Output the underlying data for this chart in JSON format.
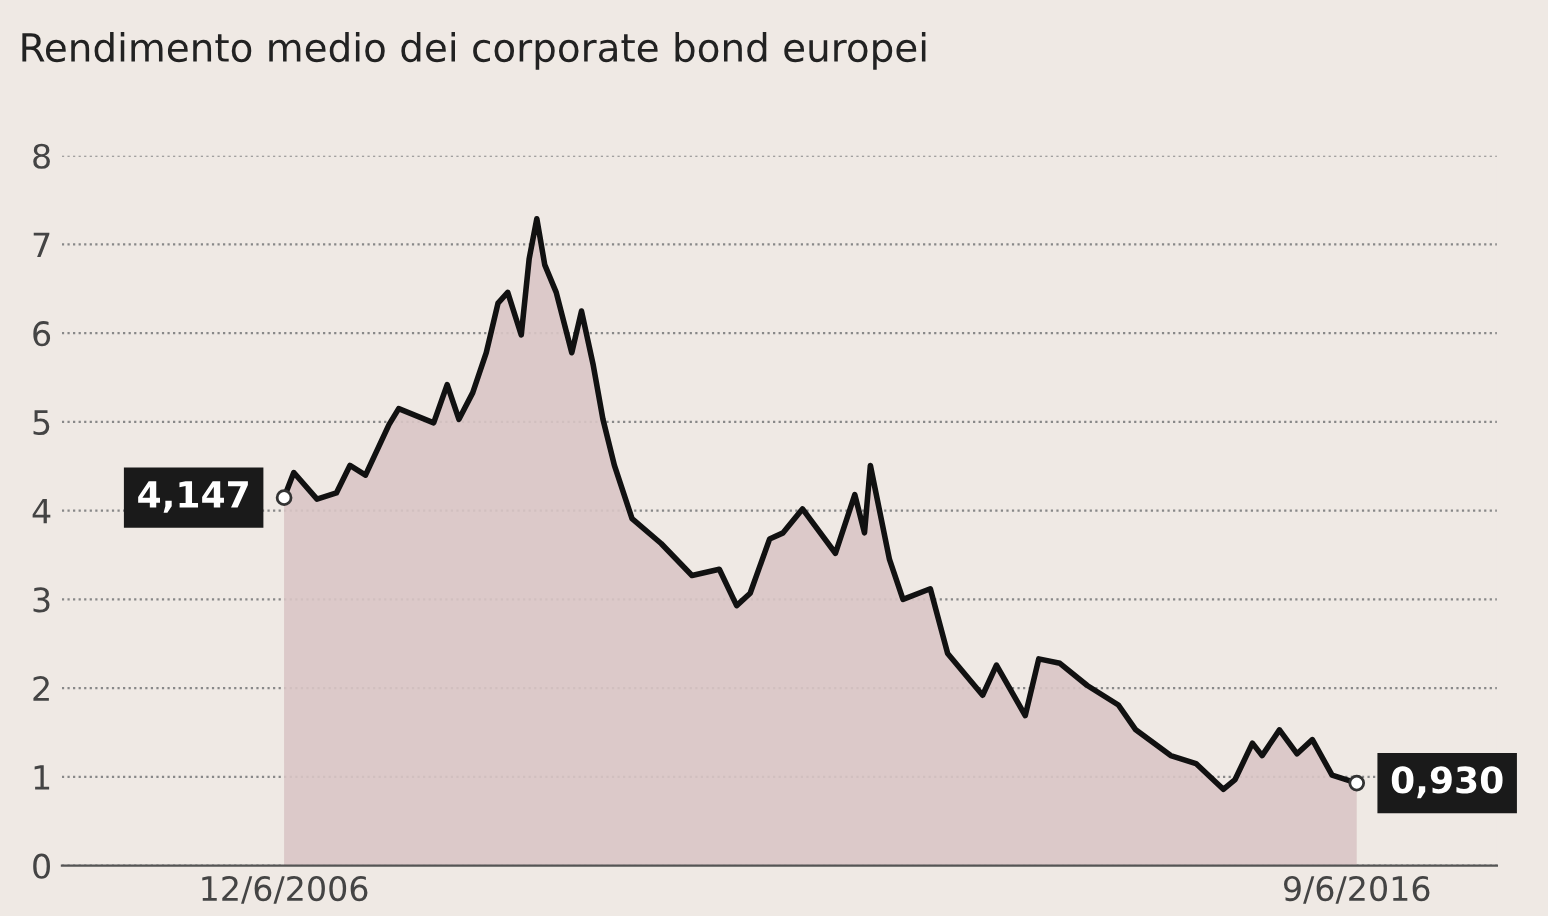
{
  "chart_data": {
    "type": "area",
    "title": "Rendimento medio dei corporate bond europei",
    "x": [
      "2006-06-12",
      "2006-07-15",
      "2006-10-02",
      "2006-12-07",
      "2007-01-22",
      "2007-03-16",
      "2007-06-04",
      "2007-07-07",
      "2007-11-03",
      "2007-12-19",
      "2008-01-28",
      "2008-03-15",
      "2008-04-30",
      "2008-06-09",
      "2008-07-12",
      "2008-08-27",
      "2008-09-23",
      "2008-10-19",
      "2008-11-15",
      "2008-12-24",
      "2009-02-15",
      "2009-03-20",
      "2009-04-29",
      "2009-06-01",
      "2009-07-10",
      "2009-09-08",
      "2009-12-16",
      "2010-03-31",
      "2010-07-02",
      "2010-08-30",
      "2010-10-15",
      "2010-12-20",
      "2011-02-04",
      "2011-04-11",
      "2011-08-01",
      "2011-10-06",
      "2011-11-08",
      "2011-11-28",
      "2012-02-01",
      "2012-03-18",
      "2012-06-19",
      "2012-08-17",
      "2012-12-14",
      "2013-01-30",
      "2013-05-08",
      "2013-06-23",
      "2013-09-03",
      "2013-12-05",
      "2014-03-21",
      "2014-05-19",
      "2014-09-15",
      "2014-12-10",
      "2015-03-13",
      "2015-04-22",
      "2015-06-20",
      "2015-07-23",
      "2015-09-20",
      "2015-11-19",
      "2016-01-10",
      "2016-03-17",
      "2016-06-09"
    ],
    "series": [
      {
        "color": "#d9c5c5",
        "values": [
          4.147,
          4.43,
          4.13,
          4.2,
          4.51,
          4.4,
          4.97,
          5.15,
          4.99,
          5.42,
          5.03,
          5.33,
          5.78,
          6.34,
          6.46,
          5.98,
          6.84,
          7.29,
          6.77,
          6.46,
          5.78,
          6.25,
          5.64,
          5.03,
          4.51,
          3.91,
          3.63,
          3.27,
          3.34,
          2.93,
          3.07,
          3.68,
          3.75,
          4.02,
          3.52,
          4.18,
          3.75,
          4.51,
          3.45,
          3.0,
          3.12,
          2.39,
          1.92,
          2.26,
          1.69,
          2.33,
          2.28,
          2.03,
          1.81,
          1.53,
          1.24,
          1.15,
          0.86,
          0.97,
          1.38,
          1.24,
          1.53,
          1.26,
          1.42,
          1.02,
          0.93
        ]
      }
    ],
    "annotations": [
      {
        "text": "4,147",
        "x": "2006-06-12",
        "y": 4.147
      },
      {
        "text": "0,930",
        "x": "2016-06-09",
        "y": 0.93
      }
    ],
    "xlim": [
      "2004-05-17",
      "2017-09-29"
    ],
    "xticks": [
      {
        "value": "2006-06-12",
        "label": "12/6/2006"
      },
      {
        "value": "2016-06-09",
        "label": "9/6/2016"
      }
    ],
    "ylim": [
      0,
      8
    ],
    "yticks": [
      0,
      1,
      2,
      3,
      4,
      5,
      6,
      7,
      8
    ],
    "grid": "y",
    "legend": false
  }
}
